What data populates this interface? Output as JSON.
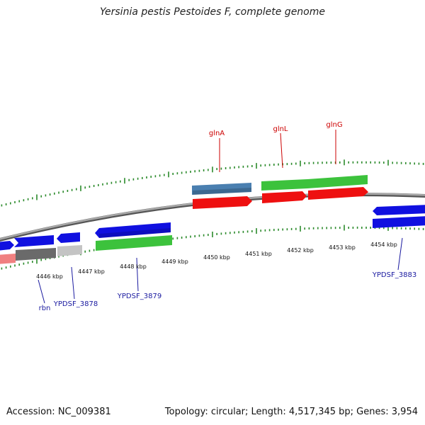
{
  "title": "Yersinia pestis Pestoides F, complete genome",
  "footer": {
    "accession": "Accession: NC_009381",
    "summary": "Topology: circular; Length: 4,517,345 bp; Genes: 3,954"
  },
  "colors": {
    "backbone": "#8c8c8c",
    "tick": "#2b8a2b",
    "gene_blue": "#1010e0",
    "gene_green": "#3cc23c",
    "gene_red": "#ee1010",
    "gene_steel": "#4a7fb0",
    "gene_gray_dark": "#6a6a6a",
    "gene_gray_light": "#c4c4c4",
    "gene_pink": "#f08080",
    "label_red": "#cc0000",
    "label_blue": "#1a1aa0"
  },
  "kbp_labels": [
    "4446 kbp",
    "4447 kbp",
    "4448 kbp",
    "4449 kbp",
    "4450 kbp",
    "4451 kbp",
    "4452 kbp",
    "4453 kbp",
    "4454 kbp"
  ],
  "gene_labels": {
    "glnA": "glnA",
    "glnL": "glnL",
    "glnG": "glnG",
    "rbn": "rbn",
    "YPDSF_3878": "YPDSF_3878",
    "YPDSF_3879": "YPDSF_3879",
    "YPDSF_3883": "YPDSF_3883"
  }
}
